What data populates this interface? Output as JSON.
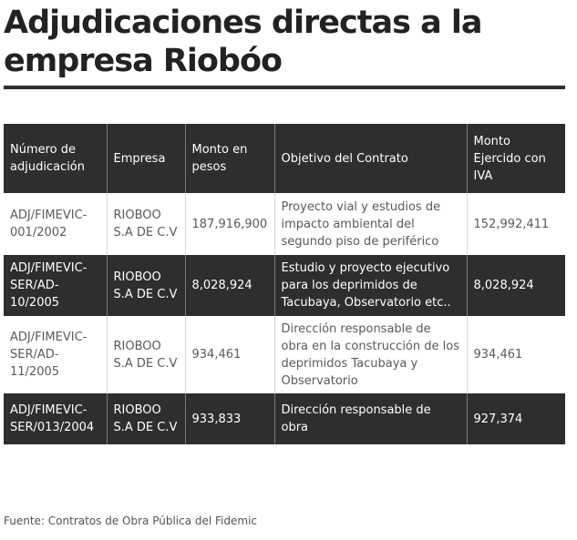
{
  "title": "Adjudicaciones directas a la empresa Riobóo",
  "table": {
    "headers": [
      "Número de adjudicación",
      "Empresa",
      "Monto en pesos",
      "Objetivo del Contrato",
      "Monto Ejercido con IVA"
    ],
    "rows": [
      {
        "numero": "ADJ/FIMEVIC-001/2002",
        "empresa": "RIOBOO S.A DE C.V",
        "monto": "187,916,900",
        "objetivo": "Proyecto vial y estudios de impacto ambiental del segundo piso de periférico",
        "ejercido": "152,992,411"
      },
      {
        "numero": "ADJ/FIMEVIC-SER/AD-10/2005",
        "empresa": "RIOBOO S.A DE C.V",
        "monto": "8,028,924",
        "objetivo": "Estudio y proyecto ejecutivo para los deprimidos de Tacubaya, Observatorio etc..",
        "ejercido": "8,028,924"
      },
      {
        "numero": "ADJ/FIMEVIC-SER/AD-11/2005",
        "empresa": "RIOBOO S.A DE C.V",
        "monto": "934,461",
        "objetivo": "Dirección responsable de obra en la construcción de los deprimidos Tacubaya y Observatorio",
        "ejercido": "934,461"
      },
      {
        "numero": "ADJ/FIMEVIC-SER/013/2004",
        "empresa": "RIOBOO S.A DE C.V",
        "monto": "933,833",
        "objetivo": "Dirección responsable de obra",
        "ejercido": "927,374"
      }
    ]
  },
  "source": "Fuente: Contratos de Obra Pública del Fidemic",
  "colors": {
    "dark_row": "#2e2e2e",
    "light_row": "#ffffff",
    "rule": "#2f2f2f"
  }
}
